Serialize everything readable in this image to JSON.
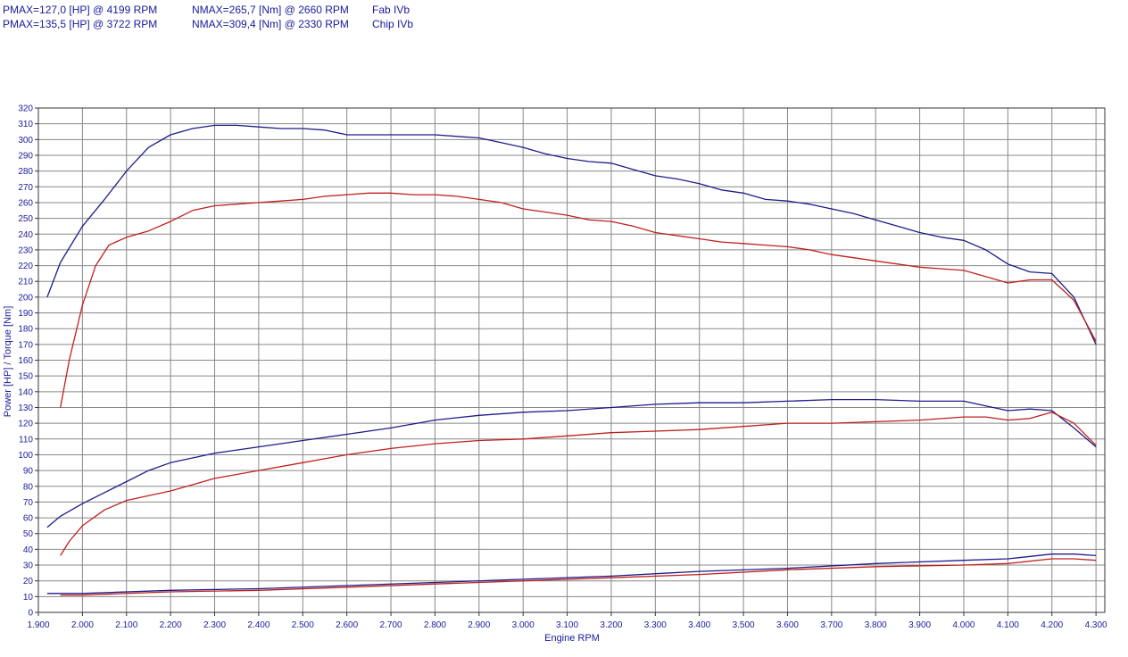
{
  "header": {
    "rows": [
      {
        "pmax": "PMAX=127,0 [HP] @ 4199 RPM",
        "nmax": "NMAX=265,7 [Nm] @ 2660 RPM",
        "label": "Fab IVb"
      },
      {
        "pmax": "PMAX=135,5 [HP] @ 3722 RPM",
        "nmax": "NMAX=309,4 [Nm] @ 2330 RPM",
        "label": "Chip IVb"
      }
    ]
  },
  "colors": {
    "fab": "#c0201c",
    "chip": "#1c1c8c",
    "grid": "#888888",
    "text": "#1a1a9c"
  },
  "chart_data": {
    "type": "line",
    "xlabel": "Engine RPM",
    "ylabel": "Power [HP] / Torque [Nm]",
    "xlim": [
      1900,
      4320
    ],
    "ylim": [
      0,
      320
    ],
    "grid": true,
    "x_ticks": [
      "1.900",
      "2.000",
      "2.100",
      "2.200",
      "2.300",
      "2.400",
      "2.500",
      "2.600",
      "2.700",
      "2.800",
      "2.900",
      "3.000",
      "3.100",
      "3.200",
      "3.300",
      "3.400",
      "3.500",
      "3.600",
      "3.700",
      "3.800",
      "3.900",
      "4.000",
      "4.100",
      "4.200",
      "4.300"
    ],
    "y_ticks": [
      "0",
      "10",
      "20",
      "30",
      "40",
      "50",
      "60",
      "70",
      "80",
      "90",
      "100",
      "110",
      "120",
      "130",
      "140",
      "150",
      "160",
      "170",
      "180",
      "190",
      "200",
      "210",
      "220",
      "230",
      "240",
      "250",
      "260",
      "270",
      "280",
      "290",
      "300",
      "310",
      "320"
    ],
    "series": [
      {
        "group": "chip",
        "kind": "torque",
        "color": "#1c1c8c",
        "x": [
          1920,
          1950,
          2000,
          2050,
          2100,
          2150,
          2200,
          2250,
          2300,
          2350,
          2400,
          2450,
          2500,
          2550,
          2600,
          2650,
          2700,
          2750,
          2800,
          2850,
          2900,
          2950,
          3000,
          3050,
          3100,
          3150,
          3200,
          3250,
          3300,
          3350,
          3400,
          3450,
          3500,
          3550,
          3600,
          3650,
          3700,
          3750,
          3800,
          3850,
          3900,
          3950,
          4000,
          4050,
          4100,
          4150,
          4200,
          4250,
          4300
        ],
        "y": [
          200,
          222,
          245,
          262,
          280,
          295,
          303,
          307,
          309,
          309,
          308,
          307,
          307,
          306,
          303,
          303,
          303,
          303,
          303,
          302,
          301,
          298,
          295,
          291,
          288,
          286,
          285,
          281,
          277,
          275,
          272,
          268,
          266,
          262,
          261,
          259,
          256,
          253,
          249,
          245,
          241,
          238,
          236,
          230,
          221,
          216,
          215,
          200,
          170
        ]
      },
      {
        "group": "fab",
        "kind": "torque",
        "color": "#c0201c",
        "x": [
          1950,
          1970,
          2000,
          2030,
          2060,
          2100,
          2150,
          2200,
          2250,
          2300,
          2350,
          2400,
          2450,
          2500,
          2550,
          2600,
          2650,
          2700,
          2750,
          2800,
          2850,
          2900,
          2950,
          3000,
          3050,
          3100,
          3150,
          3200,
          3250,
          3300,
          3350,
          3400,
          3450,
          3500,
          3550,
          3600,
          3650,
          3700,
          3750,
          3800,
          3850,
          3900,
          3950,
          4000,
          4050,
          4100,
          4150,
          4200,
          4250,
          4300
        ],
        "y": [
          130,
          160,
          195,
          220,
          233,
          238,
          242,
          248,
          255,
          258,
          259,
          260,
          261,
          262,
          264,
          265,
          266,
          266,
          265,
          265,
          264,
          262,
          260,
          256,
          254,
          252,
          249,
          248,
          245,
          241,
          239,
          237,
          235,
          234,
          233,
          232,
          230,
          227,
          225,
          223,
          221,
          219,
          218,
          217,
          213,
          209,
          211,
          211,
          198,
          172
        ]
      },
      {
        "group": "chip",
        "kind": "power",
        "color": "#1c1c8c",
        "x": [
          1920,
          1950,
          2000,
          2050,
          2100,
          2150,
          2200,
          2250,
          2300,
          2400,
          2500,
          2600,
          2700,
          2800,
          2900,
          3000,
          3100,
          3200,
          3300,
          3400,
          3500,
          3600,
          3700,
          3750,
          3800,
          3900,
          4000,
          4050,
          4100,
          4150,
          4200,
          4250,
          4300
        ],
        "y": [
          54,
          61,
          69,
          76,
          83,
          90,
          95,
          98,
          101,
          105,
          109,
          113,
          117,
          122,
          125,
          127,
          128,
          130,
          132,
          133,
          133,
          134,
          135,
          135,
          135,
          134,
          134,
          131,
          128,
          129,
          128,
          117,
          105
        ]
      },
      {
        "group": "fab",
        "kind": "power",
        "color": "#c0201c",
        "x": [
          1950,
          1970,
          2000,
          2050,
          2100,
          2150,
          2200,
          2250,
          2300,
          2400,
          2500,
          2600,
          2700,
          2800,
          2900,
          3000,
          3100,
          3200,
          3300,
          3400,
          3500,
          3600,
          3700,
          3800,
          3900,
          4000,
          4050,
          4100,
          4150,
          4200,
          4250,
          4300
        ],
        "y": [
          36,
          45,
          55,
          65,
          71,
          74,
          77,
          81,
          85,
          90,
          95,
          100,
          104,
          107,
          109,
          110,
          112,
          114,
          115,
          116,
          118,
          120,
          120,
          121,
          122,
          124,
          124,
          122,
          123,
          127,
          120,
          106
        ]
      },
      {
        "group": "chip",
        "kind": "loss",
        "color": "#1c1c8c",
        "x": [
          1920,
          2000,
          2200,
          2400,
          2600,
          2800,
          3000,
          3200,
          3400,
          3600,
          3800,
          4000,
          4100,
          4200,
          4250,
          4300
        ],
        "y": [
          12,
          12,
          14,
          15,
          17,
          19,
          21,
          23,
          26,
          28,
          31,
          33,
          34,
          37,
          37,
          36
        ]
      },
      {
        "group": "fab",
        "kind": "loss",
        "color": "#c0201c",
        "x": [
          1950,
          2000,
          2200,
          2400,
          2600,
          2800,
          3000,
          3200,
          3400,
          3600,
          3800,
          4000,
          4100,
          4200,
          4250,
          4300
        ],
        "y": [
          11,
          11,
          13,
          14,
          16,
          18,
          20,
          22,
          24,
          27,
          29,
          30,
          31,
          34,
          34,
          33
        ]
      }
    ]
  }
}
